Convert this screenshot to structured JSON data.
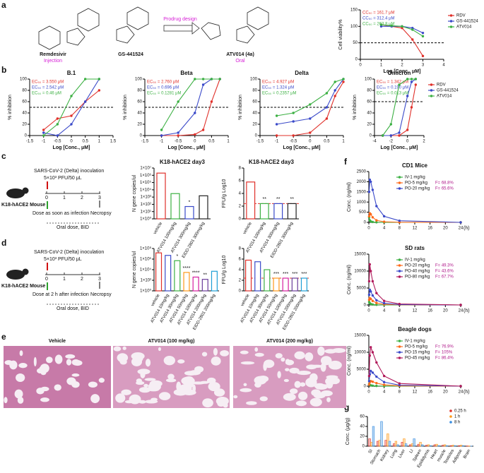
{
  "panels": [
    "a",
    "b",
    "c",
    "d",
    "e",
    "f",
    "g"
  ],
  "scheme": {
    "remdesivir": "Remdesivir",
    "injection": "Injection",
    "gs": "GS-441524",
    "prodrug": "Prodrug design",
    "atv": "ATV014 (4a)",
    "oral": "Oral"
  },
  "protocol_c": {
    "inoculation": "SARS-CoV-2 (Delta) inoculation",
    "titer": "5×10³ PFU/50 μL",
    "mouse": "K18-hACE2 Mouse",
    "dose": "Dose as soon as infection",
    "necropsy": "Necropsy",
    "regimen": "Oral dose, BID",
    "days": [
      "0",
      "1",
      "2",
      "3"
    ]
  },
  "protocol_d": {
    "inoculation": "SARS-CoV-2 (Delta) inoculation",
    "titer": "5×10³ PFU/50 μL",
    "mouse": "K18-hACE2 Mouse",
    "dose": "Dose at 2 h after infection",
    "necropsy": "Necropsy",
    "regimen": "Oral dose, BID",
    "days": [
      "0",
      "1",
      "2",
      "3"
    ]
  },
  "histology": [
    "Vehicle",
    "ATV014 (100 mg/kg)",
    "ATV014 (200 mg/kg)"
  ],
  "chart_data": [
    {
      "type": "line",
      "x": [
        1,
        1.5,
        2,
        2.5,
        3
      ],
      "xlim": [
        0,
        4
      ],
      "xticks": [
        0,
        1,
        2,
        3,
        4
      ],
      "ylim": [
        0,
        150
      ],
      "yticks": [
        0,
        50,
        100,
        150
      ],
      "xlabel": "Log [Conc., μM]",
      "ylabel": "Cell viability%",
      "threshold": 50,
      "legend": "right",
      "series": [
        {
          "name": "RDV",
          "color": "#e0302a",
          "values": [
            105,
            100,
            95,
            60,
            10
          ],
          "annotation": "CC₅₀ = 161.7 μM"
        },
        {
          "name": "GS-441524",
          "color": "#3a49c9",
          "values": [
            100,
            100,
            100,
            95,
            80
          ],
          "annotation": "CC₅₀ = 312.4 μM"
        },
        {
          "name": "ATV014",
          "color": "#3cb043",
          "values": [
            105,
            102,
            100,
            90,
            70
          ],
          "annotation": "CC₅₀ = 263.8 μM"
        }
      ]
    },
    {
      "type": "line",
      "title": "B.1",
      "x": [
        -1,
        -0.5,
        0,
        0.5,
        1
      ],
      "xlim": [
        -1.5,
        1.5
      ],
      "xticks": [
        -1.5,
        -1,
        -0.5,
        0,
        0.5,
        1,
        1.5
      ],
      "ylim": [
        0,
        100
      ],
      "yticks": [
        0,
        20,
        40,
        60,
        80,
        100
      ],
      "xlabel": "Log [Conc., μM]",
      "ylabel": "% inhibition",
      "threshold": 50,
      "series": [
        {
          "color": "#e0302a",
          "values": [
            10,
            30,
            35,
            60,
            80
          ],
          "annotation": "EC₅₀ = 3.550 μM"
        },
        {
          "color": "#3a49c9",
          "values": [
            5,
            0,
            20,
            60,
            100
          ],
          "annotation": "EC₅₀ = 2.542 μM"
        },
        {
          "color": "#3cb043",
          "values": [
            0,
            20,
            70,
            100,
            100
          ],
          "annotation": "EC₅₀ = 0.46 μM"
        }
      ]
    },
    {
      "type": "line",
      "title": "Beta",
      "x": [
        -1,
        -0.5,
        0,
        0.25,
        0.5,
        0.75
      ],
      "xlim": [
        -1.5,
        1
      ],
      "xticks": [
        -1.5,
        -1,
        -0.5,
        0,
        0.5,
        1
      ],
      "ylim": [
        0,
        100
      ],
      "yticks": [
        0,
        20,
        40,
        60,
        80,
        100
      ],
      "xlabel": "Log [Conc., μM]",
      "ylabel": "% inhibition",
      "threshold": 50,
      "series": [
        {
          "color": "#e0302a",
          "values": [
            0,
            0,
            2,
            10,
            60,
            100
          ],
          "annotation": "EC₅₀ = 2.760 μM"
        },
        {
          "color": "#3a49c9",
          "values": [
            0,
            5,
            40,
            90,
            100,
            100
          ],
          "annotation": "EC₅₀ = 0.696 μM"
        },
        {
          "color": "#3cb043",
          "values": [
            10,
            60,
            100,
            100,
            100,
            100
          ],
          "annotation": "EC₅₀ = 0.1281 μM"
        }
      ]
    },
    {
      "type": "line",
      "title": "Delta",
      "x": [
        -1,
        -0.5,
        0,
        0.5,
        0.75,
        1
      ],
      "xlim": [
        -1.5,
        1
      ],
      "xticks": [
        -1.5,
        -1,
        -0.5,
        0,
        0.5,
        1
      ],
      "ylim": [
        0,
        100
      ],
      "yticks": [
        0,
        20,
        40,
        60,
        80,
        100
      ],
      "xlabel": "Log [Conc., μM]",
      "ylabel": "% inhibition",
      "threshold": 50,
      "series": [
        {
          "color": "#e0302a",
          "values": [
            0,
            0,
            5,
            30,
            70,
            95
          ],
          "annotation": "EC₅₀ = 4.927 μM"
        },
        {
          "color": "#3a49c9",
          "values": [
            20,
            25,
            30,
            50,
            80,
            100
          ],
          "annotation": "EC₅₀ = 1.324 μM"
        },
        {
          "color": "#3cb043",
          "values": [
            35,
            40,
            55,
            75,
            95,
            100
          ],
          "annotation": "EC₅₀ = 0.2357 μM"
        }
      ]
    },
    {
      "type": "line",
      "title": "Omicron",
      "x": [
        -3,
        -2,
        -1,
        0,
        0.5,
        1
      ],
      "xlim": [
        -4,
        2
      ],
      "xticks": [
        -4,
        -2,
        0,
        2
      ],
      "ylim": [
        0,
        100
      ],
      "yticks": [
        0,
        20,
        40,
        60,
        80,
        100
      ],
      "xlabel": "Log [Conc., μM]",
      "ylabel": "% inhibition",
      "threshold": 60,
      "legend": "right",
      "series": [
        {
          "name": "RDV",
          "color": "#e0302a",
          "values": [
            0,
            0,
            0,
            10,
            50,
            90
          ],
          "annotation": "EC₅₀ = 1.342 μM"
        },
        {
          "name": "GS-441524",
          "color": "#3a49c9",
          "values": [
            0,
            0,
            5,
            70,
            95,
            100
          ],
          "annotation": "EC₅₀ = 0.190 μM"
        },
        {
          "name": "ATV014",
          "color": "#3cb043",
          "values": [
            0,
            20,
            90,
            100,
            100,
            100
          ],
          "annotation": "EC₅₀ = 0.013 μM"
        }
      ]
    },
    {
      "type": "bar",
      "title": "K18-hACE2 day3",
      "ylabel": "N gene copies/ul",
      "yscale": "log",
      "categories": [
        "vehicle",
        "ATV014 100mg/kg",
        "ATV014 300mg/kg",
        "EIDD-2801 300mg/kg"
      ],
      "values": [
        2000000,
        3000,
        50,
        1500
      ],
      "colors": [
        "#e0302a",
        "#3cb043",
        "#3a49c9",
        "#222222"
      ],
      "ylim": [
        1,
        10000000
      ],
      "yticks": [
        {
          "value": 1,
          "label": "1×10⁰"
        },
        {
          "value": 10,
          "label": "1×10¹"
        },
        {
          "value": 100,
          "label": "1×10²"
        },
        {
          "value": 1000,
          "label": "1×10³"
        },
        {
          "value": 10000,
          "label": "1×10⁴"
        },
        {
          "value": 100000,
          "label": "1×10⁵"
        },
        {
          "value": 1000000,
          "label": "1×10⁶"
        },
        {
          "value": 10000000,
          "label": "1×10⁷"
        }
      ],
      "significance": [
        null,
        null,
        "*",
        null
      ]
    },
    {
      "type": "bar",
      "title": "K18-hACE2 day3",
      "ylabel": "FFU/g Log10",
      "categories": [
        "vehicle",
        "ATV014 100mg/kg",
        "ATV014 300mg/kg",
        "EIDD-2801 300mg/kg"
      ],
      "values": [
        5.8,
        2.4,
        2.4,
        2.4
      ],
      "colors": [
        "#e0302a",
        "#3cb043",
        "#3a49c9",
        "#222222"
      ],
      "ylim": [
        0,
        8
      ],
      "yticks": [
        0,
        2,
        4,
        6,
        8
      ],
      "threshold": 2.4,
      "significance": [
        null,
        "**",
        "**",
        "**"
      ]
    },
    {
      "type": "bar",
      "ylabel": "N gene copies/ul",
      "yscale": "log",
      "categories": [
        "vehicle",
        "ATV014 10mg/kg",
        "ATV014 30mg/kg",
        "ATV014 50mg/kg",
        "ATV014 100mg/kg",
        "ATV014 200mg/kg",
        "EIDD-2801 200mg/kg"
      ],
      "values": [
        15000000,
        5000000,
        500000,
        3000,
        400,
        150,
        5000
      ],
      "colors": [
        "#e0302a",
        "#3a49c9",
        "#3cb043",
        "#ff9a1a",
        "#d61fa0",
        "#6a3d9a",
        "#1f9fd6"
      ],
      "ylim": [
        1,
        100000000
      ],
      "yticks": [
        {
          "value": 1,
          "label": "1×10⁰"
        },
        {
          "value": 100,
          "label": "1×10²"
        },
        {
          "value": 10000,
          "label": "1×10⁴"
        },
        {
          "value": 1000000,
          "label": "1×10⁶"
        },
        {
          "value": 100000000,
          "label": "1×10⁸"
        }
      ],
      "significance": [
        null,
        null,
        "*",
        "****",
        "****",
        "**",
        null
      ]
    },
    {
      "type": "bar",
      "ylabel": "FFU/g Log10",
      "categories": [
        "vehicle",
        "ATV014 10mg/kg",
        "ATV014 30mg/kg",
        "ATV014 50mg/kg",
        "ATV014 100mg/kg",
        "ATV014 200mg/kg",
        "EIDD-2801 200mg/kg"
      ],
      "values": [
        5.8,
        5.5,
        4.0,
        2.4,
        2.4,
        2.4,
        2.4
      ],
      "colors": [
        "#e0302a",
        "#3a49c9",
        "#3cb043",
        "#ff9a1a",
        "#d61fa0",
        "#6a3d9a",
        "#1f9fd6"
      ],
      "ylim": [
        0,
        8
      ],
      "yticks": [
        0,
        2,
        4,
        6,
        8
      ],
      "threshold": 2.4,
      "significance": [
        null,
        null,
        null,
        "***",
        "***",
        "***",
        "***"
      ]
    },
    {
      "type": "line",
      "title": "CD1 Mice",
      "x": [
        0.083,
        0.25,
        0.5,
        1,
        2,
        4,
        8,
        24
      ],
      "xlim": [
        0,
        24
      ],
      "xticks": [
        0,
        4,
        8,
        12,
        16,
        20,
        24
      ],
      "ylim": [
        0,
        2500
      ],
      "yticks": [
        0,
        500,
        1000,
        1500,
        2000,
        2500
      ],
      "xlabel": "(h)",
      "ylabel": "Conc. (ng/ml)",
      "legend": "center",
      "series": [
        {
          "name": "IV-1 mg/kg",
          "color": "#3cb043",
          "values": [
            250,
            100,
            50,
            20,
            5,
            2,
            0,
            0
          ]
        },
        {
          "name": "PO-5 mg/kg",
          "color": "#ff6a1a",
          "values": [
            300,
            450,
            400,
            250,
            100,
            30,
            5,
            0
          ],
          "F": "F= 68.8%"
        },
        {
          "name": "PO-20 mg/kg",
          "color": "#3a49c9",
          "values": [
            1500,
            2100,
            2000,
            1600,
            800,
            300,
            80,
            0
          ],
          "F": "F= 65.6%"
        }
      ]
    },
    {
      "type": "line",
      "title": "SD rats",
      "x": [
        0.083,
        0.25,
        0.5,
        1,
        2,
        4,
        8,
        24
      ],
      "xlim": [
        0,
        24
      ],
      "xticks": [
        0,
        4,
        8,
        12,
        16,
        20,
        24
      ],
      "ylim": [
        0,
        15000
      ],
      "yticks": [
        0,
        5000,
        10000,
        15000
      ],
      "xlabel": "(h)",
      "ylabel": "Conc. (ng/ml)",
      "legend": "center",
      "series": [
        {
          "name": "IV-1 mg/kg",
          "color": "#3cb043",
          "values": [
            900,
            500,
            300,
            150,
            60,
            20,
            5,
            0
          ]
        },
        {
          "name": "PO-20 mg/kg",
          "color": "#ff6a1a",
          "values": [
            1500,
            2000,
            1800,
            1200,
            600,
            200,
            50,
            0
          ],
          "F": "F= 49.3%"
        },
        {
          "name": "PO-40 mg/kg",
          "color": "#3a49c9",
          "values": [
            3000,
            4500,
            4000,
            2800,
            1400,
            500,
            120,
            0
          ],
          "F": "F= 43.6%"
        },
        {
          "name": "PO-80 mg/kg",
          "color": "#b0185a",
          "values": [
            7000,
            12000,
            10000,
            7000,
            3500,
            1200,
            300,
            0
          ],
          "F": "F= 67.7%"
        }
      ]
    },
    {
      "type": "line",
      "title": "Beagle dogs",
      "x": [
        0.083,
        0.25,
        0.5,
        1,
        2,
        4,
        8,
        24
      ],
      "xlim": [
        0,
        24
      ],
      "xticks": [
        0,
        4,
        8,
        12,
        16,
        20,
        24
      ],
      "ylim": [
        0,
        15000
      ],
      "yticks": [
        0,
        5000,
        10000,
        15000
      ],
      "xlabel": "(h)",
      "ylabel": "Conc. (ng/ml)",
      "legend": "center",
      "series": [
        {
          "name": "IV-1 mg/kg",
          "color": "#3cb043",
          "values": [
            600,
            400,
            250,
            150,
            80,
            30,
            10,
            0
          ]
        },
        {
          "name": "PO-5 mg/kg",
          "color": "#ff6a1a",
          "values": [
            500,
            1200,
            1500,
            1300,
            900,
            400,
            100,
            0
          ],
          "F": "F= 76.9%"
        },
        {
          "name": "PO-15 mg/kg",
          "color": "#3a49c9",
          "values": [
            1500,
            3500,
            4500,
            4000,
            2800,
            1200,
            300,
            0
          ],
          "F": "F= 105%"
        },
        {
          "name": "PO-45 mg/kg",
          "color": "#b0185a",
          "values": [
            3000,
            9000,
            11500,
            10000,
            7000,
            3000,
            800,
            0
          ],
          "F": "F= 86.4%"
        }
      ]
    },
    {
      "type": "bar",
      "ylabel": "Conc. (μg/g)",
      "categories": [
        "SI",
        "Stomach",
        "Kidney",
        "Lung",
        "Liver",
        "LI",
        "Spleen",
        "Epididymis",
        "Heart",
        "muscle",
        "Testicles",
        "Adipose",
        "Brain"
      ],
      "ylim": [
        0,
        60
      ],
      "yticks": [
        0,
        20,
        40,
        60
      ],
      "legend": "upper right",
      "series": [
        {
          "name": "0.25 h",
          "color": "#e0302a",
          "values": [
            15,
            10,
            12,
            5,
            8,
            3,
            4,
            2,
            3,
            2,
            1,
            1,
            0.5
          ]
        },
        {
          "name": "1 h",
          "color": "#ff9a1a",
          "values": [
            8,
            12,
            25,
            10,
            15,
            5,
            8,
            3,
            4,
            3,
            2,
            2,
            0.5
          ]
        },
        {
          "name": "8 h",
          "color": "#3a8ee0",
          "values": [
            40,
            50,
            10,
            3,
            5,
            15,
            3,
            1,
            1,
            1,
            1,
            1,
            0.3
          ]
        }
      ]
    }
  ]
}
